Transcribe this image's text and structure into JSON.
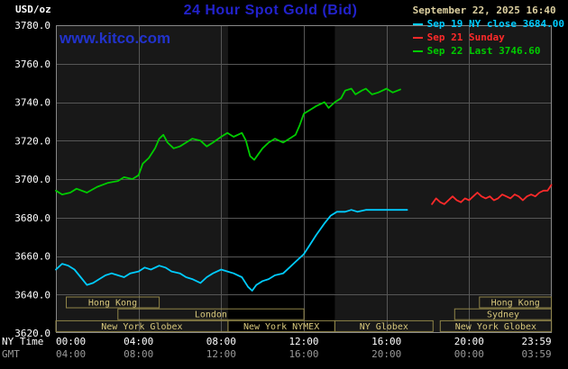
{
  "header": {
    "unit": "USD/oz",
    "title": "24 Hour Spot Gold (Bid)",
    "timestamp": "September 22, 2025 16:40",
    "watermark": "www.kitco.com"
  },
  "legend": [
    {
      "id": "sep19",
      "label": "Sep 19 NY close 3684.00",
      "color": "#00ccff"
    },
    {
      "id": "sep21",
      "label": "Sep 21 Sunday",
      "color": "#ff2a2a"
    },
    {
      "id": "sep22",
      "label": "Sep 22 Last 3746.60",
      "color": "#00cc00"
    }
  ],
  "colors": {
    "title": "#2222cc",
    "watermark": "#2233cc",
    "timestamp": "#ddd0a0",
    "axis_text": "#ffffff",
    "gmt_text": "#9a9a9a",
    "grid": "#565656",
    "border": "#888888",
    "plot_bg": "#181818",
    "band_bg": "#000000",
    "session": "#d8c87c",
    "session_border": "#8f8448"
  },
  "chart_data": {
    "type": "line",
    "title": "24 Hour Spot Gold (Bid)",
    "ylabel": "USD/oz",
    "xlabel": "NY Time / GMT",
    "grid": true,
    "legend_position": "top-right",
    "ylim": [
      3620,
      3780
    ],
    "xlim_hours": [
      0,
      24
    ],
    "y_ticks": [
      {
        "v": 3620,
        "label": "3620.0"
      },
      {
        "v": 3640,
        "label": "3640.0"
      },
      {
        "v": 3660,
        "label": "3660.0"
      },
      {
        "v": 3680,
        "label": "3680.0"
      },
      {
        "v": 3700,
        "label": "3700.0"
      },
      {
        "v": 3720,
        "label": "3720.0"
      },
      {
        "v": 3740,
        "label": "3740.0"
      },
      {
        "v": 3760,
        "label": "3760.0"
      },
      {
        "v": 3780,
        "label": "3780.0"
      }
    ],
    "x_axis_rows": {
      "ny": "NY Time",
      "gmt": "GMT"
    },
    "x_ticks": [
      {
        "h": 0,
        "ny": "00:00",
        "gmt": "04:00",
        "align": "start"
      },
      {
        "h": 4,
        "ny": "04:00",
        "gmt": "08:00"
      },
      {
        "h": 8,
        "ny": "08:00",
        "gmt": "12:00"
      },
      {
        "h": 12,
        "ny": "12:00",
        "gmt": "16:00"
      },
      {
        "h": 16,
        "ny": "16:00",
        "gmt": "20:00"
      },
      {
        "h": 20,
        "ny": "20:00",
        "gmt": "00:00"
      },
      {
        "h": 23.983,
        "ny": "23:59",
        "gmt": "03:59",
        "align": "end"
      }
    ],
    "nymex_band_hours": [
      8.33,
      13.5
    ],
    "sessions": [
      {
        "row": 0,
        "start": 0.5,
        "end": 5.0,
        "label": "Hong Kong"
      },
      {
        "row": 0,
        "start": 20.5,
        "end": 23.983,
        "label": "Hong Kong"
      },
      {
        "row": 1,
        "start": 3.0,
        "end": 12.0,
        "label": "London"
      },
      {
        "row": 1,
        "start": 19.3,
        "end": 23.983,
        "label": "Sydney"
      },
      {
        "row": 2,
        "start": 0.0,
        "end": 8.33,
        "label": "New York Globex"
      },
      {
        "row": 2,
        "start": 8.33,
        "end": 13.5,
        "label": "New York NYMEX"
      },
      {
        "row": 2,
        "start": 13.5,
        "end": 18.25,
        "label": "NY Globex"
      },
      {
        "row": 2,
        "start": 18.6,
        "end": 23.983,
        "label": "New York Globex"
      }
    ],
    "series": [
      {
        "id": "sep19",
        "name": "Sep 19 NY close",
        "color": "#00ccff",
        "close": 3684.0,
        "points": [
          [
            0,
            3653
          ],
          [
            0.3,
            3656
          ],
          [
            0.6,
            3655
          ],
          [
            0.9,
            3653
          ],
          [
            1.2,
            3649
          ],
          [
            1.5,
            3645
          ],
          [
            1.8,
            3646
          ],
          [
            2.1,
            3648
          ],
          [
            2.4,
            3650
          ],
          [
            2.7,
            3651
          ],
          [
            3,
            3650
          ],
          [
            3.3,
            3649
          ],
          [
            3.6,
            3651
          ],
          [
            4,
            3652
          ],
          [
            4.3,
            3654
          ],
          [
            4.6,
            3653
          ],
          [
            5,
            3655
          ],
          [
            5.3,
            3654
          ],
          [
            5.6,
            3652
          ],
          [
            6,
            3651
          ],
          [
            6.3,
            3649
          ],
          [
            6.6,
            3648
          ],
          [
            7,
            3646
          ],
          [
            7.3,
            3649
          ],
          [
            7.6,
            3651
          ],
          [
            8,
            3653
          ],
          [
            8.3,
            3652
          ],
          [
            8.6,
            3651
          ],
          [
            9,
            3649
          ],
          [
            9.3,
            3644
          ],
          [
            9.5,
            3642
          ],
          [
            9.7,
            3645
          ],
          [
            10,
            3647
          ],
          [
            10.3,
            3648
          ],
          [
            10.6,
            3650
          ],
          [
            11,
            3651
          ],
          [
            11.3,
            3654
          ],
          [
            11.6,
            3657
          ],
          [
            12,
            3661
          ],
          [
            12.3,
            3666
          ],
          [
            12.6,
            3671
          ],
          [
            13,
            3677
          ],
          [
            13.3,
            3681
          ],
          [
            13.6,
            3683
          ],
          [
            14,
            3683
          ],
          [
            14.3,
            3684
          ],
          [
            14.6,
            3683
          ],
          [
            15,
            3684
          ],
          [
            15.5,
            3684
          ],
          [
            16,
            3684
          ],
          [
            16.5,
            3684
          ],
          [
            17,
            3684
          ]
        ]
      },
      {
        "id": "sep21",
        "name": "Sep 21 Sunday",
        "color": "#ff2a2a",
        "points": [
          [
            18.2,
            3687
          ],
          [
            18.4,
            3690
          ],
          [
            18.6,
            3688
          ],
          [
            18.8,
            3687
          ],
          [
            19,
            3689
          ],
          [
            19.2,
            3691
          ],
          [
            19.4,
            3689
          ],
          [
            19.6,
            3688
          ],
          [
            19.8,
            3690
          ],
          [
            20,
            3689
          ],
          [
            20.2,
            3691
          ],
          [
            20.4,
            3693
          ],
          [
            20.6,
            3691
          ],
          [
            20.8,
            3690
          ],
          [
            21,
            3691
          ],
          [
            21.2,
            3689
          ],
          [
            21.4,
            3690
          ],
          [
            21.6,
            3692
          ],
          [
            21.8,
            3691
          ],
          [
            22,
            3690
          ],
          [
            22.2,
            3692
          ],
          [
            22.4,
            3691
          ],
          [
            22.6,
            3689
          ],
          [
            22.8,
            3691
          ],
          [
            23,
            3692
          ],
          [
            23.2,
            3691
          ],
          [
            23.4,
            3693
          ],
          [
            23.6,
            3694
          ],
          [
            23.8,
            3694
          ],
          [
            23.983,
            3697
          ]
        ]
      },
      {
        "id": "sep22",
        "name": "Sep 22 Last",
        "color": "#00cc00",
        "last": 3746.6,
        "points": [
          [
            0,
            3694
          ],
          [
            0.3,
            3692
          ],
          [
            0.7,
            3693
          ],
          [
            1,
            3695
          ],
          [
            1.5,
            3693
          ],
          [
            2,
            3696
          ],
          [
            2.5,
            3698
          ],
          [
            3,
            3699
          ],
          [
            3.3,
            3701
          ],
          [
            3.7,
            3700
          ],
          [
            4,
            3702
          ],
          [
            4.2,
            3708
          ],
          [
            4.5,
            3711
          ],
          [
            4.8,
            3716
          ],
          [
            5,
            3721
          ],
          [
            5.2,
            3723
          ],
          [
            5.4,
            3719
          ],
          [
            5.7,
            3716
          ],
          [
            6,
            3717
          ],
          [
            6.3,
            3719
          ],
          [
            6.6,
            3721
          ],
          [
            7,
            3720
          ],
          [
            7.3,
            3717
          ],
          [
            7.6,
            3719
          ],
          [
            8,
            3722
          ],
          [
            8.3,
            3724
          ],
          [
            8.6,
            3722
          ],
          [
            9,
            3724
          ],
          [
            9.2,
            3720
          ],
          [
            9.4,
            3712
          ],
          [
            9.6,
            3710
          ],
          [
            9.8,
            3713
          ],
          [
            10,
            3716
          ],
          [
            10.3,
            3719
          ],
          [
            10.6,
            3721
          ],
          [
            11,
            3719
          ],
          [
            11.3,
            3721
          ],
          [
            11.6,
            3723
          ],
          [
            11.8,
            3728
          ],
          [
            12,
            3734
          ],
          [
            12.3,
            3736
          ],
          [
            12.6,
            3738
          ],
          [
            13,
            3740
          ],
          [
            13.2,
            3737
          ],
          [
            13.5,
            3740
          ],
          [
            13.8,
            3742
          ],
          [
            14,
            3746
          ],
          [
            14.3,
            3747
          ],
          [
            14.5,
            3744
          ],
          [
            14.8,
            3746
          ],
          [
            15,
            3747
          ],
          [
            15.3,
            3744
          ],
          [
            15.6,
            3745
          ],
          [
            16,
            3747
          ],
          [
            16.3,
            3745
          ],
          [
            16.67,
            3746.6
          ]
        ]
      }
    ]
  }
}
